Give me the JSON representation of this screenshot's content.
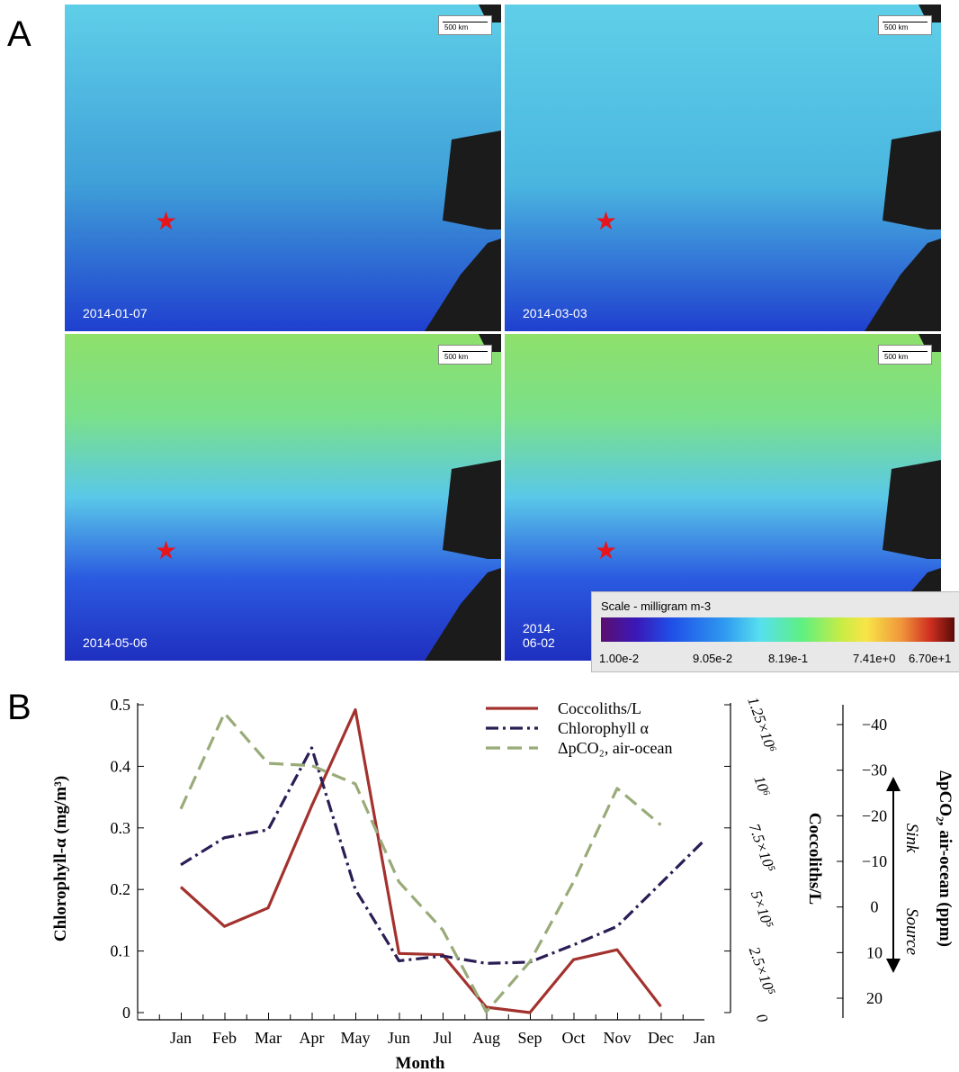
{
  "panel_labels": {
    "a": "A",
    "b": "B"
  },
  "maps": [
    {
      "date": "2014-01-07",
      "scale_label": "500 km",
      "bg": "#3f9fd8"
    },
    {
      "date": "2014-03-03",
      "scale_label": "500 km",
      "bg": "#4ab6e0"
    },
    {
      "date": "2014-05-06",
      "scale_label": "500 km",
      "bg": "#2a70d8"
    },
    {
      "date": "2014-06-02",
      "scale_label": "500 km",
      "bg": "#2f80da"
    }
  ],
  "legend": {
    "title": "Scale - milligram m-3",
    "ticks": [
      "1.00e-2",
      "9.05e-2",
      "8.19e-1",
      "7.41e+0",
      "6.70e+1"
    ]
  },
  "chart_data": {
    "type": "line",
    "categories": [
      "Jan",
      "Feb",
      "Mar",
      "Apr",
      "May",
      "Jun",
      "Jul",
      "Aug",
      "Sep",
      "Oct",
      "Nov",
      "Dec",
      "Jan"
    ],
    "xlabel": "Month",
    "ylabel_left": "Chlorophyll-α (mg/m³)",
    "ylabel_right1": "Coccoliths/L",
    "ylabel_right2": "ΔpCO₂, air-ocean (ppm)",
    "sink_label": "Sink",
    "source_label": "Source",
    "left_axis": {
      "min": 0,
      "max": 0.5,
      "ticks": [
        "0",
        "0.1",
        "0.2",
        "0.3",
        "0.4",
        "0.5"
      ]
    },
    "right1_axis": {
      "min": 0,
      "max": 1250000,
      "ticks": [
        "0",
        "2.5×10⁵",
        "5×10⁵",
        "7.5×10⁵",
        "10⁶",
        "1.25×10⁶"
      ]
    },
    "right2_axis": {
      "min": -45,
      "max": 25,
      "ticks": [
        "−40",
        "−30",
        "−20",
        "−10",
        "0",
        "10",
        "20"
      ]
    },
    "series": [
      {
        "name": "Coccoliths/L",
        "axis": "right1",
        "color": "#a3322e",
        "dash": "solid",
        "values": [
          510000,
          350000,
          425000,
          840000,
          1230000,
          240000,
          235000,
          22000,
          0,
          215000,
          255000,
          25000,
          null
        ]
      },
      {
        "name": "Chlorophyll α",
        "axis": "left",
        "color": "#2b1d55",
        "dash": "dashdot",
        "values": [
          0.24,
          0.284,
          0.297,
          0.43,
          0.2,
          0.084,
          0.092,
          0.08,
          0.082,
          0.11,
          0.14,
          0.21,
          0.28
        ]
      },
      {
        "name": "ΔpCO₂, air-ocean",
        "axis": "right2",
        "color": "#98ab78",
        "dash": "dashed",
        "values": [
          -21.5,
          -42.5,
          -31.5,
          -31,
          -27,
          -5.5,
          5,
          23,
          12,
          -5.5,
          -26,
          -18,
          null
        ]
      }
    ],
    "legend_labels": [
      "Coccoliths/L",
      "Chlorophyll α",
      "ΔpCO₂, air-ocean"
    ]
  }
}
